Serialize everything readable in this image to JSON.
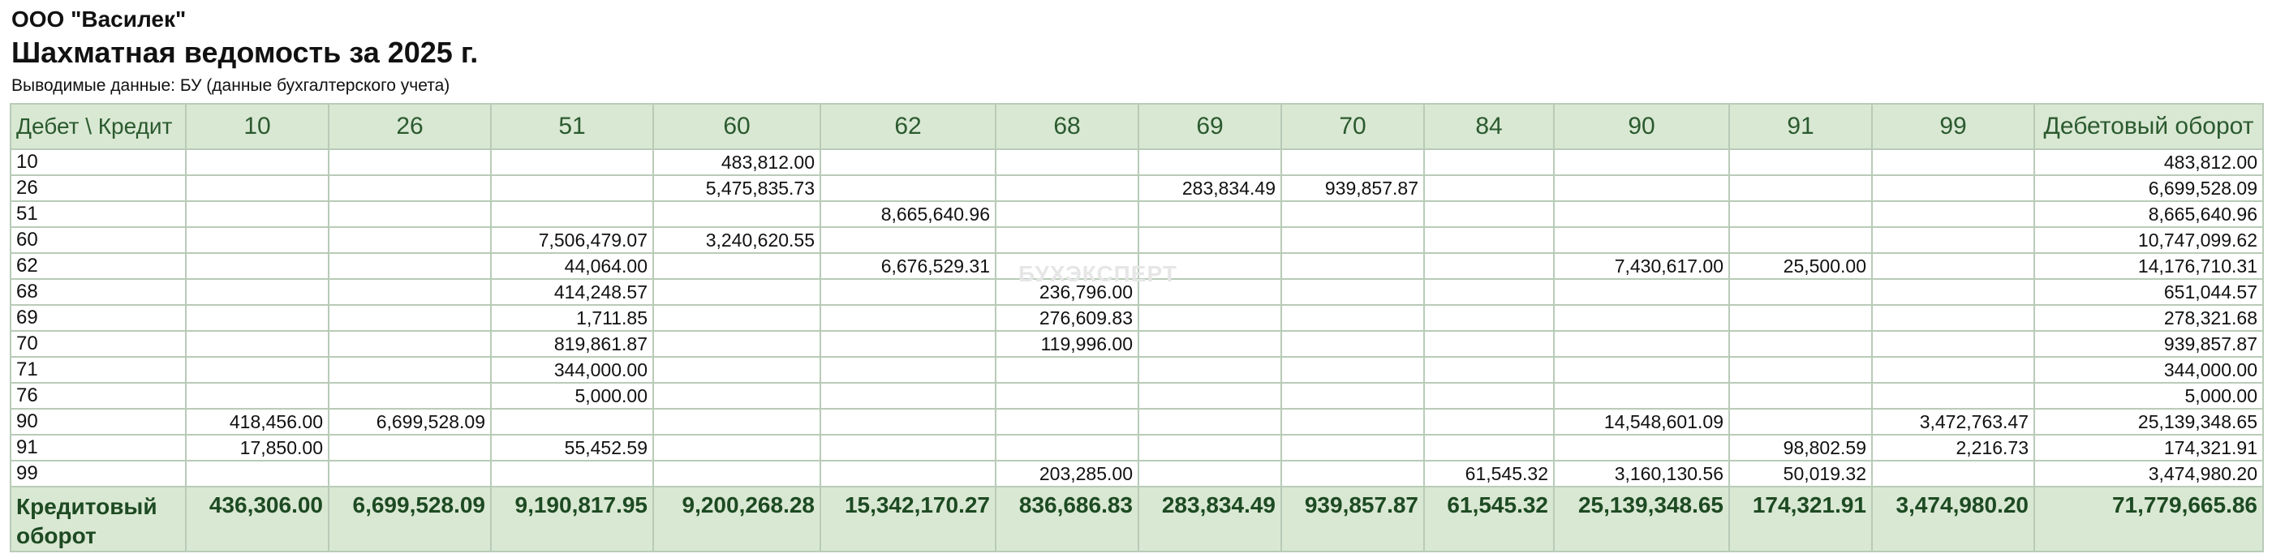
{
  "header": {
    "org": "ООО \"Василек\"",
    "title": "Шахматная ведомость за 2025 г.",
    "note": "Выводимые данные: БУ (данные бухгалтерского учета)"
  },
  "watermark": "БУХЭКСПЕРТ",
  "table": {
    "corner": "Дебет \\ Кредит",
    "columns": [
      "10",
      "26",
      "51",
      "60",
      "62",
      "68",
      "69",
      "70",
      "84",
      "90",
      "91",
      "99"
    ],
    "total_col_label": "Дебетовый оборот",
    "rows": [
      {
        "acc": "10",
        "cells": [
          "",
          "",
          "",
          "483,812.00",
          "",
          "",
          "",
          "",
          "",
          "",
          "",
          ""
        ],
        "total": "483,812.00"
      },
      {
        "acc": "26",
        "cells": [
          "",
          "",
          "",
          "5,475,835.73",
          "",
          "",
          "283,834.49",
          "939,857.87",
          "",
          "",
          "",
          ""
        ],
        "total": "6,699,528.09"
      },
      {
        "acc": "51",
        "cells": [
          "",
          "",
          "",
          "",
          "8,665,640.96",
          "",
          "",
          "",
          "",
          "",
          "",
          ""
        ],
        "total": "8,665,640.96"
      },
      {
        "acc": "60",
        "cells": [
          "",
          "",
          "7,506,479.07",
          "3,240,620.55",
          "",
          "",
          "",
          "",
          "",
          "",
          "",
          ""
        ],
        "total": "10,747,099.62"
      },
      {
        "acc": "62",
        "cells": [
          "",
          "",
          "44,064.00",
          "",
          "6,676,529.31",
          "",
          "",
          "",
          "",
          "7,430,617.00",
          "25,500.00",
          ""
        ],
        "total": "14,176,710.31"
      },
      {
        "acc": "68",
        "cells": [
          "",
          "",
          "414,248.57",
          "",
          "",
          "236,796.00",
          "",
          "",
          "",
          "",
          "",
          ""
        ],
        "total": "651,044.57"
      },
      {
        "acc": "69",
        "cells": [
          "",
          "",
          "1,711.85",
          "",
          "",
          "276,609.83",
          "",
          "",
          "",
          "",
          "",
          ""
        ],
        "total": "278,321.68"
      },
      {
        "acc": "70",
        "cells": [
          "",
          "",
          "819,861.87",
          "",
          "",
          "119,996.00",
          "",
          "",
          "",
          "",
          "",
          ""
        ],
        "total": "939,857.87"
      },
      {
        "acc": "71",
        "cells": [
          "",
          "",
          "344,000.00",
          "",
          "",
          "",
          "",
          "",
          "",
          "",
          "",
          ""
        ],
        "total": "344,000.00"
      },
      {
        "acc": "76",
        "cells": [
          "",
          "",
          "5,000.00",
          "",
          "",
          "",
          "",
          "",
          "",
          "",
          "",
          ""
        ],
        "total": "5,000.00"
      },
      {
        "acc": "90",
        "cells": [
          "418,456.00",
          "6,699,528.09",
          "",
          "",
          "",
          "",
          "",
          "",
          "",
          "14,548,601.09",
          "",
          "3,472,763.47"
        ],
        "total": "25,139,348.65"
      },
      {
        "acc": "91",
        "cells": [
          "17,850.00",
          "",
          "55,452.59",
          "",
          "",
          "",
          "",
          "",
          "",
          "",
          "98,802.59",
          "2,216.73"
        ],
        "total": "174,321.91"
      },
      {
        "acc": "99",
        "cells": [
          "",
          "",
          "",
          "",
          "",
          "203,285.00",
          "",
          "",
          "61,545.32",
          "3,160,130.56",
          "50,019.32",
          ""
        ],
        "total": "3,474,980.20"
      }
    ],
    "footer": {
      "label": "Кредитовый оборот",
      "cells": [
        "436,306.00",
        "6,699,528.09",
        "9,190,817.95",
        "9,200,268.28",
        "15,342,170.27",
        "836,686.83",
        "283,834.49",
        "939,857.87",
        "61,545.32",
        "25,139,348.65",
        "174,321.91",
        "3,474,980.20"
      ],
      "total": "71,779,665.86"
    }
  }
}
